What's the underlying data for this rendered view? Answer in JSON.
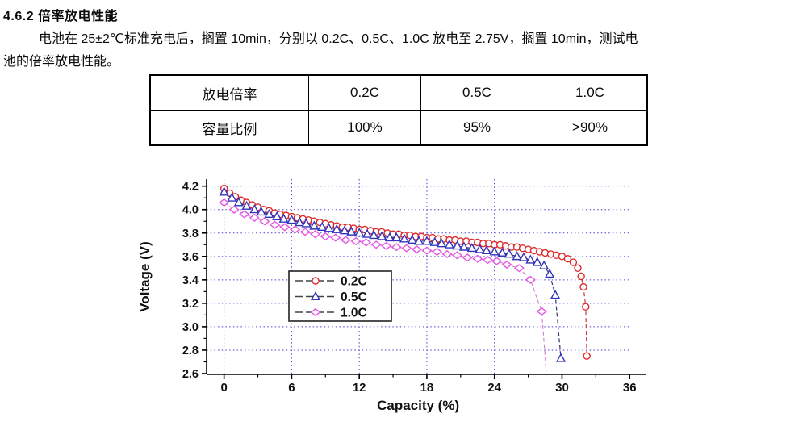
{
  "doc": {
    "heading": "4.6.2 倍率放电性能",
    "paragraph_line1": "电池在 25±2℃标准充电后，搁置 10min，分别以 0.2C、0.5C、1.0C 放电至 2.75V，搁置 10min，测试电",
    "paragraph_line2": "池的倍率放电性能。"
  },
  "table": {
    "rows": [
      [
        "放电倍率",
        "0.2C",
        "0.5C",
        "1.0C"
      ],
      [
        "容量比例",
        "100%",
        "95%",
        ">90%"
      ]
    ]
  },
  "chart_data": {
    "type": "line",
    "title": "",
    "xlabel": "Capacity (%)",
    "ylabel": "Voltage (V)",
    "xlim": [
      -1.55,
      36.7
    ],
    "ylim": [
      2.593,
      4.26
    ],
    "x_major_ticks": [
      0,
      6,
      12,
      18,
      24,
      30,
      36
    ],
    "x_minor_ticks": [
      3,
      9,
      15,
      21,
      27,
      33
    ],
    "x_grid_ticks": [
      0,
      6,
      12,
      18,
      24,
      30
    ],
    "y_major_ticks": [
      2.6,
      2.8,
      3.0,
      3.2,
      3.4,
      3.6,
      3.8,
      4.0,
      4.2
    ],
    "y_minor_ticks": [
      2.7,
      2.9,
      3.1,
      3.3,
      3.5,
      3.7,
      3.9,
      4.1
    ],
    "grid": "dotted",
    "grid_color": "#3b3bd2",
    "axis_color": "#000000",
    "legend_position": "middle-left",
    "legend_line_color": "#444444",
    "series": [
      {
        "name": "0.2C",
        "marker": "circle",
        "color": "#dd2b2b",
        "line_color": "#c83a3a",
        "x": [
          0,
          0.5,
          1,
          1.5,
          2,
          2.5,
          3,
          3.5,
          4,
          4.5,
          5,
          5.5,
          6,
          6.5,
          7,
          7.5,
          8,
          8.5,
          9,
          9.5,
          10,
          10.5,
          11,
          11.5,
          12,
          12.5,
          13,
          13.5,
          14,
          14.5,
          15,
          15.5,
          16,
          16.5,
          17,
          17.5,
          18,
          18.5,
          19,
          19.5,
          20,
          20.5,
          21,
          21.5,
          22,
          22.5,
          23,
          23.5,
          24,
          24.5,
          25,
          25.5,
          26,
          26.5,
          27,
          27.5,
          28,
          28.5,
          29,
          29.5,
          30,
          30.5,
          31,
          31.4,
          31.7,
          31.9,
          32.1,
          32.2
        ],
        "y": [
          4.18,
          4.14,
          4.11,
          4.08,
          4.06,
          4.04,
          4.02,
          4.0,
          3.99,
          3.97,
          3.96,
          3.95,
          3.94,
          3.93,
          3.92,
          3.91,
          3.9,
          3.89,
          3.88,
          3.87,
          3.86,
          3.85,
          3.85,
          3.84,
          3.83,
          3.83,
          3.82,
          3.81,
          3.81,
          3.8,
          3.79,
          3.79,
          3.78,
          3.78,
          3.77,
          3.77,
          3.76,
          3.76,
          3.75,
          3.75,
          3.74,
          3.74,
          3.73,
          3.73,
          3.72,
          3.72,
          3.71,
          3.71,
          3.7,
          3.7,
          3.69,
          3.68,
          3.68,
          3.67,
          3.66,
          3.65,
          3.64,
          3.63,
          3.62,
          3.61,
          3.6,
          3.58,
          3.55,
          3.5,
          3.43,
          3.34,
          3.17,
          2.75
        ],
        "tail": []
      },
      {
        "name": "0.5C",
        "marker": "triangle",
        "color": "#3333bb",
        "line_color": "#36366e",
        "x": [
          0,
          0.7,
          1.3,
          2,
          2.7,
          3.3,
          4,
          4.7,
          5.3,
          6,
          6.7,
          7.3,
          8,
          8.7,
          9.3,
          10,
          10.7,
          11.3,
          12,
          12.7,
          13.3,
          14,
          14.7,
          15.3,
          16,
          16.7,
          17.3,
          18,
          18.7,
          19.3,
          20,
          20.7,
          21.3,
          22,
          22.7,
          23.3,
          24,
          24.7,
          25.3,
          26,
          26.6,
          27.2,
          27.8,
          28.4,
          28.9,
          29.4,
          29.9
        ],
        "y": [
          4.15,
          4.1,
          4.06,
          4.03,
          4.0,
          3.98,
          3.96,
          3.94,
          3.92,
          3.91,
          3.89,
          3.88,
          3.86,
          3.85,
          3.84,
          3.83,
          3.82,
          3.81,
          3.8,
          3.79,
          3.78,
          3.77,
          3.76,
          3.76,
          3.75,
          3.74,
          3.73,
          3.73,
          3.72,
          3.71,
          3.7,
          3.69,
          3.68,
          3.67,
          3.66,
          3.65,
          3.64,
          3.63,
          3.62,
          3.6,
          3.59,
          3.57,
          3.55,
          3.52,
          3.45,
          3.27,
          2.73
        ],
        "tail": []
      },
      {
        "name": "1.0C",
        "marker": "diamond",
        "color": "#e455e4",
        "line_color": "#d387cf",
        "x": [
          0,
          0.9,
          1.8,
          2.7,
          3.6,
          4.5,
          5.4,
          6.3,
          7.2,
          8.1,
          9,
          9.9,
          10.8,
          11.7,
          12.6,
          13.5,
          14.4,
          15.3,
          16.2,
          17.1,
          18,
          18.9,
          19.8,
          20.7,
          21.6,
          22.5,
          23.4,
          24.2,
          25.1,
          26.2,
          27.2,
          28.2
        ],
        "y": [
          4.06,
          4.0,
          3.96,
          3.93,
          3.9,
          3.87,
          3.85,
          3.83,
          3.81,
          3.79,
          3.77,
          3.76,
          3.74,
          3.73,
          3.72,
          3.7,
          3.69,
          3.68,
          3.67,
          3.66,
          3.65,
          3.64,
          3.62,
          3.61,
          3.59,
          3.58,
          3.57,
          3.56,
          3.53,
          3.5,
          3.4,
          3.13
        ],
        "tail": [
          [
            28.6,
            2.62
          ]
        ]
      }
    ]
  }
}
